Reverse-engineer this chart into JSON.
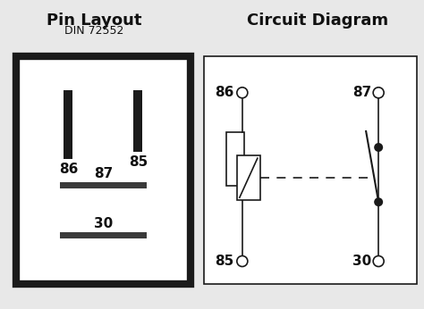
{
  "title_left": "Pin Layout",
  "subtitle_left": "DIN 72552",
  "title_right": "Circuit Diagram",
  "bg_color": "#e8e8e8",
  "font_color": "#111111",
  "fig_w": 4.74,
  "fig_h": 3.46,
  "dpi": 100
}
